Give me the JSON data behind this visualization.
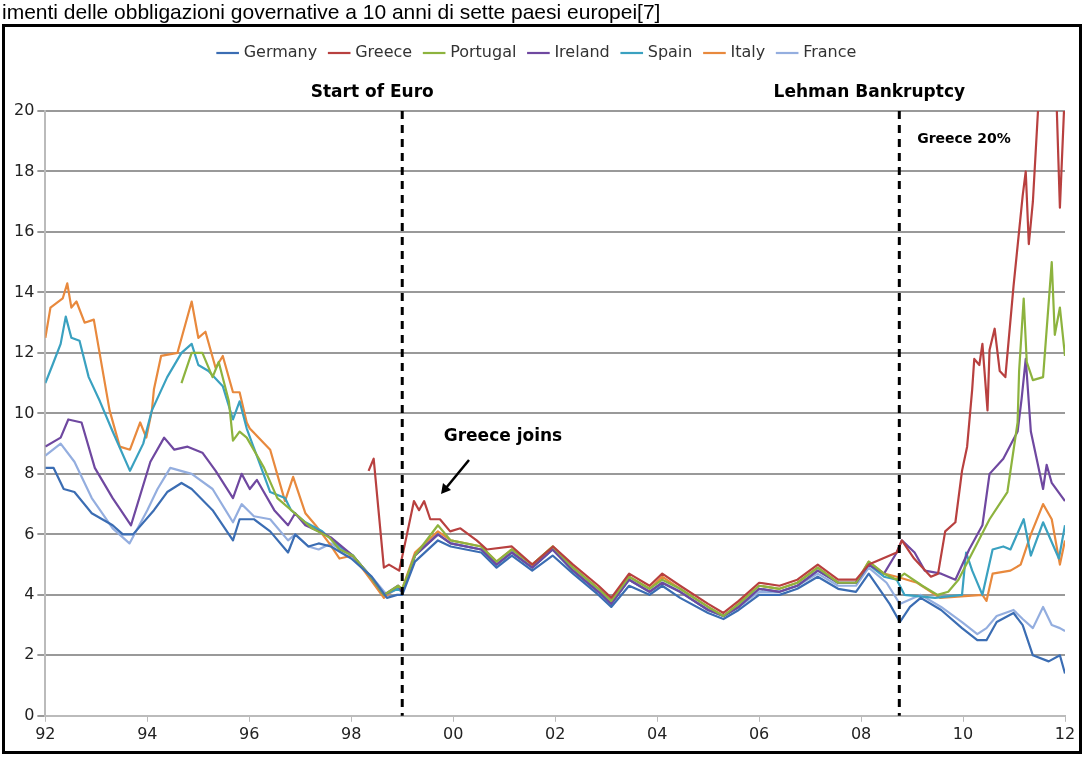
{
  "chart_data": {
    "type": "line",
    "title": "imenti delle obbligazioni governative a 10 anni di sette paesi europei[7]",
    "xlim": [
      1992,
      2012
    ],
    "xticks": [
      {
        "value": 1992,
        "label": "92"
      },
      {
        "value": 1994,
        "label": "94"
      },
      {
        "value": 1996,
        "label": "96"
      },
      {
        "value": 1998,
        "label": "98"
      },
      {
        "value": 2000,
        "label": "00"
      },
      {
        "value": 2002,
        "label": "02"
      },
      {
        "value": 2004,
        "label": "04"
      },
      {
        "value": 2006,
        "label": "06"
      },
      {
        "value": 2008,
        "label": "08"
      },
      {
        "value": 2010,
        "label": "10"
      },
      {
        "value": 2012,
        "label": "12"
      }
    ],
    "ylim": [
      0,
      20
    ],
    "yticks": [
      0,
      2,
      4,
      6,
      8,
      10,
      12,
      14,
      16,
      18,
      20
    ],
    "grid": "y",
    "legend": "top",
    "marker": "none",
    "line_style": "solid",
    "ref_lines": [
      {
        "axis": "x",
        "value": 1999.0,
        "label": "Start of Euro",
        "color": "#000000",
        "line_style": "dashed"
      },
      {
        "axis": "x",
        "value": 2008.75,
        "label": "Lehman Bankruptcy",
        "color": "#000000",
        "line_style": "dashed"
      }
    ],
    "annotations": [
      "Greece joins",
      "Greece 20%"
    ],
    "series": [
      {
        "name": "Germany",
        "color": "#3b6db3",
        "x": [
          1992.0,
          1992.16,
          1992.36,
          1992.57,
          1992.91,
          1993.32,
          1993.52,
          1993.72,
          1994.13,
          1994.39,
          1994.67,
          1994.87,
          1995.28,
          1995.68,
          1995.81,
          1996.09,
          1996.41,
          1996.76,
          1996.9,
          1997.16,
          1997.36,
          1997.6,
          1998.0,
          1998.4,
          1998.7,
          1998.9,
          1999.0,
          1999.25,
          1999.7,
          1999.95,
          2000.55,
          2000.85,
          2001.15,
          2001.55,
          2001.95,
          2002.35,
          2002.85,
          2003.1,
          2003.45,
          2003.85,
          2004.1,
          2004.45,
          2005.0,
          2005.3,
          2005.6,
          2006.0,
          2006.4,
          2006.75,
          2007.15,
          2007.55,
          2007.9,
          2008.15,
          2008.56,
          2008.76,
          2008.96,
          2009.17,
          2009.57,
          2009.98,
          2010.28,
          2010.46,
          2010.66,
          2010.99,
          2011.17,
          2011.37,
          2011.68,
          2011.9,
          2012.0
        ],
        "values": [
          8.2,
          8.2,
          7.5,
          7.4,
          6.7,
          6.3,
          6.0,
          6.0,
          6.8,
          7.4,
          7.7,
          7.5,
          6.8,
          5.8,
          6.5,
          6.5,
          6.1,
          5.4,
          6.0,
          5.6,
          5.7,
          5.6,
          5.2,
          4.6,
          3.9,
          4.0,
          4.0,
          5.1,
          5.8,
          5.6,
          5.4,
          4.9,
          5.3,
          4.8,
          5.3,
          4.7,
          4.0,
          3.6,
          4.3,
          4.0,
          4.3,
          3.9,
          3.4,
          3.2,
          3.5,
          4.0,
          4.0,
          4.2,
          4.6,
          4.2,
          4.1,
          4.7,
          3.7,
          3.1,
          3.6,
          3.9,
          3.5,
          2.9,
          2.5,
          2.5,
          3.1,
          3.4,
          3.0,
          2.0,
          1.8,
          2.0,
          1.4
        ]
      },
      {
        "name": "Greece",
        "color": "#b8403f",
        "x": [
          1998.34,
          1998.44,
          1998.64,
          1998.74,
          1998.94,
          1999.08,
          1999.23,
          1999.33,
          1999.43,
          1999.55,
          1999.74,
          1999.94,
          2000.14,
          2000.46,
          2000.66,
          2001.15,
          2001.55,
          2001.96,
          2002.35,
          2002.85,
          2003.1,
          2003.45,
          2003.85,
          2004.1,
          2004.45,
          2005.0,
          2005.3,
          2005.6,
          2006.0,
          2006.4,
          2006.75,
          2007.15,
          2007.55,
          2007.9,
          2008.15,
          2008.7,
          2008.8,
          2009.04,
          2009.37,
          2009.51,
          2009.65,
          2009.85,
          2009.98,
          2010.08,
          2010.18,
          2010.22,
          2010.32,
          2010.38,
          2010.48,
          2010.52,
          2010.62,
          2010.72,
          2010.83,
          2010.99,
          2011.17,
          2011.23,
          2011.29,
          2011.37,
          2011.47,
          2011.6,
          2011.84,
          2011.9,
          2011.98
        ],
        "values": [
          8.1,
          8.5,
          4.9,
          5.0,
          4.8,
          5.9,
          7.1,
          6.8,
          7.1,
          6.5,
          6.5,
          6.1,
          6.2,
          5.8,
          5.5,
          5.6,
          5.0,
          5.6,
          5.0,
          4.3,
          3.9,
          4.7,
          4.3,
          4.7,
          4.3,
          3.7,
          3.4,
          3.8,
          4.4,
          4.3,
          4.5,
          5.0,
          4.5,
          4.5,
          5.0,
          5.4,
          5.8,
          5.2,
          4.6,
          4.7,
          6.1,
          6.4,
          8.1,
          8.9,
          10.8,
          11.8,
          11.6,
          12.3,
          10.1,
          12.1,
          12.8,
          11.4,
          11.2,
          14.2,
          17.2,
          18.0,
          15.6,
          17.0,
          20.0,
          null,
          20.0,
          16.8,
          20.0
        ]
      },
      {
        "name": "Portugal",
        "color": "#8db33e",
        "x": [
          1994.67,
          1994.87,
          1995.08,
          1995.28,
          1995.4,
          1995.6,
          1995.68,
          1995.81,
          1995.95,
          1996.29,
          1996.55,
          1996.96,
          1997.23,
          1997.57,
          1997.77,
          1998.03,
          1998.38,
          1998.64,
          1998.92,
          1999.0,
          1999.25,
          1999.7,
          1999.95,
          2000.55,
          2000.85,
          2001.15,
          2001.55,
          2001.95,
          2002.35,
          2002.85,
          2003.1,
          2003.45,
          2003.85,
          2004.1,
          2004.45,
          2005.0,
          2005.3,
          2005.6,
          2006.0,
          2006.4,
          2006.75,
          2007.15,
          2007.55,
          2007.9,
          2008.15,
          2008.45,
          2008.7,
          2008.85,
          2009.2,
          2009.5,
          2009.71,
          2009.91,
          2010.52,
          2010.87,
          2011.07,
          2011.1,
          2011.19,
          2011.25,
          2011.37,
          2011.57,
          2011.74,
          2011.8,
          2011.9,
          2012.0
        ],
        "values": [
          11.0,
          12.0,
          12.0,
          11.2,
          11.7,
          10.4,
          9.1,
          9.4,
          9.2,
          8.2,
          7.2,
          6.6,
          6.2,
          5.9,
          5.5,
          5.3,
          4.6,
          4.0,
          4.3,
          4.2,
          5.3,
          6.3,
          5.8,
          5.6,
          5.1,
          5.5,
          5.0,
          5.6,
          4.9,
          4.2,
          3.8,
          4.6,
          4.2,
          4.5,
          4.2,
          3.6,
          3.3,
          3.7,
          4.3,
          4.2,
          4.4,
          4.9,
          4.4,
          4.4,
          5.1,
          4.7,
          4.5,
          4.7,
          4.3,
          4.0,
          4.1,
          4.5,
          6.5,
          7.4,
          9.7,
          11.4,
          13.8,
          11.7,
          11.1,
          11.2,
          15.0,
          12.6,
          13.5,
          11.9
        ]
      },
      {
        "name": "Ireland",
        "color": "#6f48a0",
        "x": [
          1992.0,
          1992.3,
          1992.45,
          1992.71,
          1992.97,
          1993.32,
          1993.68,
          1994.06,
          1994.33,
          1994.53,
          1994.79,
          1995.08,
          1995.34,
          1995.68,
          1995.85,
          1996.01,
          1996.15,
          1996.49,
          1996.76,
          1996.9,
          1997.1,
          1997.36,
          1997.6,
          1998.03,
          1998.38,
          1998.64,
          1998.92,
          1999.0,
          1999.25,
          1999.7,
          1999.95,
          2000.55,
          2000.85,
          2001.15,
          2001.55,
          2001.95,
          2002.35,
          2002.85,
          2003.1,
          2003.45,
          2003.85,
          2004.1,
          2004.45,
          2005.0,
          2005.3,
          2005.6,
          2006.0,
          2006.4,
          2006.75,
          2007.15,
          2007.55,
          2007.9,
          2008.15,
          2008.45,
          2008.7,
          2008.8,
          2009.05,
          2009.25,
          2009.57,
          2009.85,
          2010.12,
          2010.38,
          2010.52,
          2010.79,
          2011.07,
          2011.15,
          2011.23,
          2011.33,
          2011.57,
          2011.64,
          2011.74,
          2012.0
        ],
        "values": [
          8.9,
          9.2,
          9.8,
          9.7,
          8.2,
          7.2,
          6.3,
          8.4,
          9.2,
          8.8,
          8.9,
          8.7,
          8.1,
          7.2,
          8.0,
          7.5,
          7.8,
          6.8,
          6.3,
          6.7,
          6.3,
          6.1,
          5.9,
          5.3,
          4.6,
          4.0,
          4.3,
          4.1,
          5.3,
          6.0,
          5.7,
          5.5,
          5.0,
          5.4,
          4.9,
          5.5,
          4.8,
          4.1,
          3.7,
          4.5,
          4.1,
          4.4,
          4.1,
          3.5,
          3.3,
          3.6,
          4.2,
          4.1,
          4.3,
          4.8,
          4.4,
          4.4,
          5.0,
          4.7,
          5.4,
          5.8,
          5.4,
          4.8,
          4.7,
          4.5,
          5.5,
          6.3,
          8.0,
          8.5,
          9.4,
          10.5,
          11.8,
          9.4,
          7.5,
          8.3,
          7.7,
          7.1
        ]
      },
      {
        "name": "Spain",
        "color": "#3aa1c0",
        "x": [
          1992.0,
          1992.14,
          1992.3,
          1992.4,
          1992.51,
          1992.67,
          1992.85,
          1993.07,
          1993.32,
          1993.66,
          1993.92,
          1994.09,
          1994.39,
          1994.67,
          1994.87,
          1995.0,
          1995.2,
          1995.48,
          1995.68,
          1995.81,
          1995.95,
          1996.41,
          1996.7,
          1996.82,
          1997.1,
          1997.43,
          1997.77,
          1998.03,
          1998.38,
          1998.64,
          1998.92,
          1999.0,
          1999.25,
          1999.7,
          1999.95,
          2000.55,
          2000.85,
          2001.15,
          2001.55,
          2001.95,
          2002.35,
          2002.85,
          2003.1,
          2003.45,
          2003.85,
          2004.1,
          2004.45,
          2005.0,
          2005.3,
          2005.6,
          2006.0,
          2006.4,
          2006.75,
          2007.15,
          2007.55,
          2007.9,
          2008.15,
          2008.45,
          2008.7,
          2008.85,
          2009.45,
          2009.98,
          2010.06,
          2010.18,
          2010.38,
          2010.58,
          2010.79,
          2010.93,
          2011.19,
          2011.33,
          2011.57,
          2011.88,
          2012.0
        ],
        "values": [
          11.0,
          11.6,
          12.3,
          13.2,
          12.5,
          12.4,
          11.2,
          10.4,
          9.4,
          8.1,
          9.0,
          10.1,
          11.2,
          12.0,
          12.3,
          11.6,
          11.4,
          10.9,
          9.8,
          10.4,
          9.5,
          7.4,
          7.2,
          6.8,
          6.4,
          6.1,
          5.6,
          5.3,
          4.6,
          4.0,
          4.2,
          4.1,
          5.3,
          6.0,
          5.7,
          5.5,
          5.0,
          5.4,
          4.9,
          5.5,
          4.8,
          4.1,
          3.7,
          4.5,
          4.1,
          4.4,
          4.1,
          3.5,
          3.3,
          3.6,
          4.2,
          4.1,
          4.3,
          4.8,
          4.4,
          4.4,
          5.0,
          4.6,
          4.5,
          4.0,
          3.9,
          4.0,
          5.4,
          4.8,
          4.0,
          5.5,
          5.6,
          5.5,
          6.5,
          5.3,
          6.4,
          5.2,
          6.3
        ]
      },
      {
        "name": "Italy",
        "color": "#e8893d",
        "x": [
          1992.0,
          1992.1,
          1992.34,
          1992.43,
          1992.51,
          1992.61,
          1992.77,
          1992.95,
          1993.26,
          1993.46,
          1993.66,
          1993.86,
          1993.98,
          1994.09,
          1994.13,
          1994.27,
          1994.59,
          1994.87,
          1995.0,
          1995.14,
          1995.34,
          1995.48,
          1995.68,
          1995.81,
          1995.95,
          1996.01,
          1996.41,
          1996.7,
          1996.86,
          1997.1,
          1997.3,
          1997.57,
          1997.77,
          1998.03,
          1998.38,
          1998.64,
          1998.92,
          1999.0,
          1999.25,
          1999.7,
          1999.95,
          2000.55,
          2000.85,
          2001.15,
          2001.55,
          2001.95,
          2002.35,
          2002.85,
          2003.1,
          2003.45,
          2003.85,
          2004.1,
          2004.45,
          2005.0,
          2005.3,
          2005.6,
          2006.0,
          2006.4,
          2006.75,
          2007.15,
          2007.55,
          2007.9,
          2008.15,
          2008.45,
          2008.7,
          2009.1,
          2009.55,
          2010.38,
          2010.46,
          2010.58,
          2010.93,
          2011.13,
          2011.33,
          2011.57,
          2011.74,
          2011.9,
          2012.0
        ],
        "values": [
          12.5,
          13.5,
          13.8,
          14.3,
          13.5,
          13.7,
          13.0,
          13.1,
          10.1,
          8.9,
          8.8,
          9.7,
          9.2,
          10.1,
          10.8,
          11.9,
          12.0,
          13.7,
          12.5,
          12.7,
          11.5,
          11.9,
          10.7,
          10.7,
          9.7,
          9.5,
          8.8,
          7.1,
          7.9,
          6.7,
          6.3,
          5.7,
          5.2,
          5.3,
          4.5,
          3.9,
          4.3,
          4.2,
          5.4,
          6.1,
          5.8,
          5.6,
          5.1,
          5.5,
          5.0,
          5.6,
          4.9,
          4.2,
          3.8,
          4.6,
          4.2,
          4.6,
          4.2,
          3.6,
          3.3,
          3.7,
          4.3,
          4.2,
          4.4,
          4.9,
          4.4,
          4.4,
          5.1,
          4.7,
          4.6,
          4.4,
          3.9,
          4.0,
          3.8,
          4.7,
          4.8,
          5.0,
          6.0,
          7.0,
          6.5,
          5.0,
          5.8
        ]
      },
      {
        "name": "France",
        "color": "#94aedf",
        "x": [
          1992.0,
          1992.3,
          1992.57,
          1992.91,
          1993.32,
          1993.65,
          1994.0,
          1994.2,
          1994.45,
          1994.87,
          1995.28,
          1995.68,
          1995.85,
          1996.09,
          1996.41,
          1996.76,
          1996.9,
          1997.16,
          1997.36,
          1997.6,
          1998.0,
          1998.4,
          1998.7,
          1998.9,
          1999.0,
          1999.25,
          1999.7,
          1999.95,
          2000.55,
          2000.85,
          2001.15,
          2001.55,
          2001.95,
          2002.35,
          2002.85,
          2003.1,
          2003.45,
          2003.85,
          2004.1,
          2004.45,
          2005.0,
          2005.3,
          2005.6,
          2006.0,
          2006.4,
          2006.75,
          2007.15,
          2007.55,
          2007.9,
          2008.15,
          2008.5,
          2008.76,
          2009.17,
          2009.57,
          2009.98,
          2010.28,
          2010.46,
          2010.66,
          2010.99,
          2011.17,
          2011.37,
          2011.57,
          2011.74,
          2011.9,
          2012.0
        ],
        "values": [
          8.6,
          9.0,
          8.4,
          7.2,
          6.2,
          5.7,
          6.8,
          7.5,
          8.2,
          8.0,
          7.5,
          6.4,
          7.0,
          6.6,
          6.5,
          5.8,
          6.0,
          5.6,
          5.5,
          5.7,
          5.3,
          4.6,
          4.0,
          4.2,
          4.1,
          5.3,
          6.0,
          5.7,
          5.5,
          5.0,
          5.4,
          4.9,
          5.5,
          4.8,
          4.1,
          3.7,
          4.5,
          4.1,
          4.4,
          4.1,
          3.5,
          3.3,
          3.6,
          4.1,
          4.1,
          4.3,
          4.7,
          4.3,
          4.3,
          4.9,
          4.4,
          3.7,
          4.0,
          3.6,
          3.1,
          2.7,
          2.9,
          3.3,
          3.5,
          3.2,
          2.9,
          3.6,
          3.0,
          2.9,
          2.8
        ]
      }
    ]
  }
}
